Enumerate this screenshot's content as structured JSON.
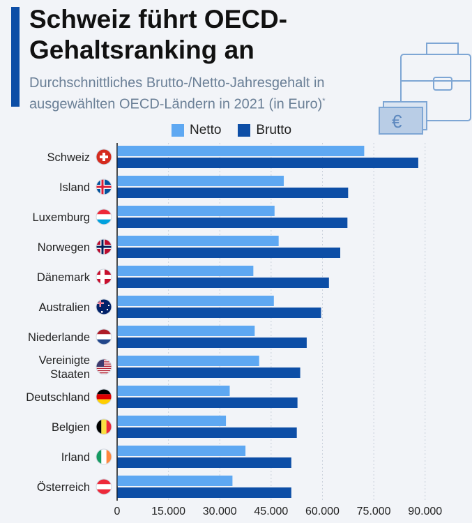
{
  "title_line1": "Schweiz führt OECD-",
  "title_line2": "Gehaltsranking an",
  "subtitle_line1": "Durchschnittliches Brutto-/Netto-Jahresgehalt in",
  "subtitle_line2": "ausgewählten OECD-Ländern in 2021 (in Euro)",
  "subtitle_mark": "*",
  "decoration": {
    "currency_symbol": "€"
  },
  "colors": {
    "netto": "#5ea8f2",
    "brutto": "#0d4ea6",
    "accent": "#0d4ea6"
  },
  "chart_data": {
    "type": "bar",
    "orientation": "horizontal",
    "categories": [
      "Schweiz",
      "Island",
      "Luxemburg",
      "Norwegen",
      "Dänemark",
      "Australien",
      "Niederlande",
      "Vereinigte Staaten",
      "Deutschland",
      "Belgien",
      "Irland",
      "Österreich"
    ],
    "category_lines": [
      [
        "Schweiz"
      ],
      [
        "Island"
      ],
      [
        "Luxemburg"
      ],
      [
        "Norwegen"
      ],
      [
        "Dänemark"
      ],
      [
        "Australien"
      ],
      [
        "Niederlande"
      ],
      [
        "Vereinigte",
        "Staaten"
      ],
      [
        "Deutschland"
      ],
      [
        "Belgien"
      ],
      [
        "Irland"
      ],
      [
        "Österreich"
      ]
    ],
    "category_icons": [
      "flag-switzerland-icon",
      "flag-iceland-icon",
      "flag-luxembourg-icon",
      "flag-norway-icon",
      "flag-denmark-icon",
      "flag-australia-icon",
      "flag-netherlands-icon",
      "flag-united-states-icon",
      "flag-germany-icon",
      "flag-belgium-icon",
      "flag-ireland-icon",
      "flag-austria-icon"
    ],
    "series": [
      {
        "name": "Netto",
        "values": [
          72100,
          48600,
          45900,
          47100,
          39700,
          45700,
          40100,
          41400,
          32800,
          31700,
          37400,
          33600
        ]
      },
      {
        "name": "Brutto",
        "values": [
          87900,
          67400,
          67200,
          65100,
          61800,
          59500,
          55300,
          53400,
          52600,
          52400,
          50800,
          50800
        ]
      }
    ],
    "xlim": [
      0,
      98000
    ],
    "xticks": [
      0,
      15000,
      30000,
      45000,
      60000,
      75000,
      90000
    ],
    "xtick_labels": [
      "0",
      "15.000",
      "30.000",
      "45.000",
      "60.000",
      "75.000",
      "90.000"
    ],
    "grid": true,
    "legend": "top"
  }
}
